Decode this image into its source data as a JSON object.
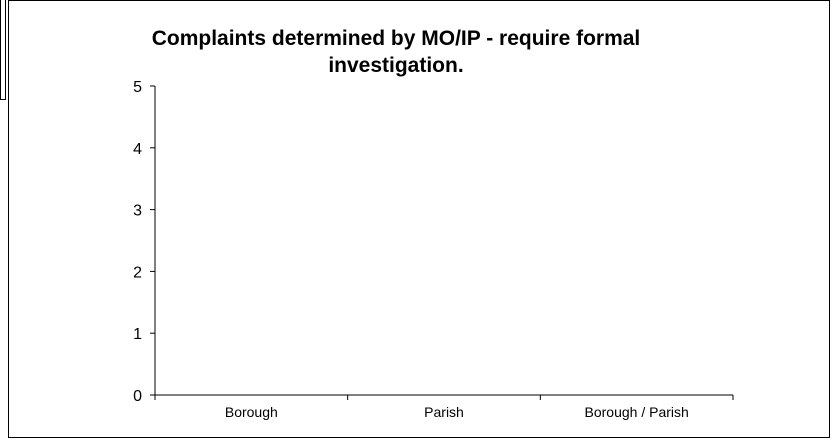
{
  "chart_data": {
    "type": "bar",
    "title_lines": [
      "Complaints determined by MO/IP - require formal",
      "investigation."
    ],
    "categories": [
      "Borough",
      "Parish",
      "Borough / Parish"
    ],
    "values": [
      0,
      0,
      0
    ],
    "ylim": [
      0,
      5
    ],
    "yticks": [
      0,
      1,
      2,
      3,
      4,
      5
    ],
    "xlabel": "",
    "ylabel": "",
    "grid": false
  }
}
